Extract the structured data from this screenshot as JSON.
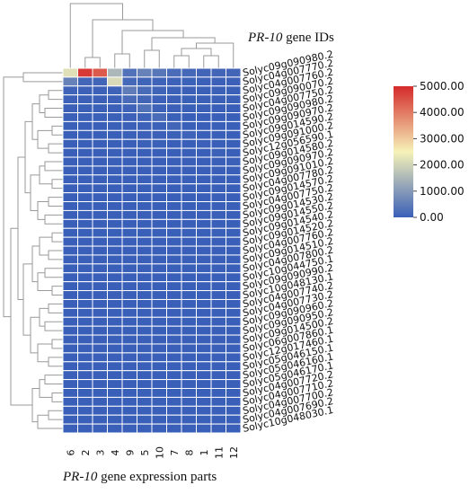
{
  "figure": {
    "top_title_italic": "PR-10",
    "top_title_rest": " gene IDs",
    "bottom_title_italic": "PR-10",
    "bottom_title_rest": " gene expression parts"
  },
  "colors": {
    "low": "#3a5fb8",
    "mid": "#f6f2b8",
    "high": "#d42a2a",
    "grid": "#ffffff",
    "dendrogram": "#9a9a9a",
    "text": "#111111"
  },
  "chart_data": {
    "type": "heatmap",
    "columns": [
      "6",
      "2",
      "3",
      "4",
      "9",
      "5",
      "10",
      "7",
      "8",
      "1",
      "11",
      "12"
    ],
    "rows": [
      "Solyc09g090980.2",
      "Solyc04g007770.2",
      "Solyc04g007760.2",
      "Solyc09g090070.2",
      "Solyc04g007750.2",
      "Solyc09g090980.2",
      "Solyc09g090970.2",
      "Solyc09g014590.2",
      "Solyc09g091000.2",
      "Solyc12g056590.1",
      "Solyc09g014580.2",
      "Solyc09g090970.2",
      "Solyc09g091010.2",
      "Solyc04g007780.2",
      "Solyc09g014570.2",
      "Solyc04g007750.2",
      "Solyc09g014530.2",
      "Solyc09g014550.2",
      "Solyc09g014540.2",
      "Solyc09g014520.2",
      "Solyc04g007760.2",
      "Solyc09g014510.2",
      "Solyc04g007800.2",
      "Solyc10g044750.1",
      "Solyc09g090990.2",
      "Solyc10g048130.1",
      "Solyc04g007740.2",
      "Solyc04g007730.2",
      "Solyc09g090960.2",
      "Solyc09g090950.2",
      "Solyc09g014500.2",
      "Solyc06g007860.1",
      "Solyc12g017460.1",
      "Solyc05g046150.1",
      "Solyc05g046160.1",
      "Solyc05g046170.1",
      "Solyc04g007720.2",
      "Solyc04g007710.2",
      "Solyc04g007700.2",
      "Solyc04g007690.2",
      "Solyc10g048030.1"
    ],
    "values": [
      [
        2200,
        4800,
        4400,
        1500,
        300,
        600,
        400,
        200,
        150,
        100,
        100,
        100
      ],
      [
        600,
        100,
        100,
        2100,
        150,
        80,
        60,
        40,
        30,
        20,
        20,
        20
      ],
      [
        60,
        40,
        40,
        60,
        500,
        200,
        80,
        30,
        20,
        10,
        10,
        10
      ],
      [
        40,
        20,
        20,
        40,
        200,
        100,
        40,
        20,
        10,
        10,
        10,
        10
      ],
      [
        20,
        10,
        10,
        20,
        60,
        300,
        50,
        20,
        10,
        10,
        5,
        5
      ],
      [
        10,
        10,
        10,
        10,
        40,
        60,
        200,
        10,
        5,
        5,
        5,
        5
      ],
      [
        10,
        5,
        5,
        10,
        20,
        40,
        30,
        100,
        5,
        5,
        5,
        5
      ],
      [
        5,
        5,
        5,
        5,
        10,
        20,
        20,
        10,
        60,
        5,
        5,
        5
      ],
      [
        5,
        5,
        5,
        5,
        5,
        10,
        10,
        5,
        5,
        40,
        5,
        5
      ],
      [
        5,
        5,
        5,
        5,
        5,
        5,
        5,
        5,
        5,
        5,
        30,
        5
      ],
      [
        5,
        5,
        5,
        5,
        5,
        5,
        5,
        5,
        5,
        5,
        5,
        20
      ],
      [
        5,
        5,
        5,
        5,
        5,
        5,
        5,
        5,
        5,
        5,
        5,
        5
      ],
      [
        5,
        5,
        5,
        5,
        5,
        5,
        5,
        5,
        5,
        5,
        5,
        5
      ],
      [
        5,
        5,
        5,
        5,
        5,
        5,
        5,
        5,
        5,
        5,
        5,
        5
      ],
      [
        5,
        5,
        5,
        5,
        5,
        5,
        5,
        5,
        5,
        5,
        5,
        5
      ],
      [
        5,
        5,
        5,
        5,
        5,
        5,
        5,
        5,
        5,
        5,
        5,
        5
      ],
      [
        5,
        5,
        5,
        5,
        5,
        5,
        5,
        5,
        5,
        5,
        5,
        5
      ],
      [
        5,
        5,
        5,
        5,
        5,
        5,
        5,
        5,
        5,
        5,
        5,
        5
      ],
      [
        5,
        5,
        5,
        5,
        5,
        5,
        5,
        5,
        5,
        5,
        5,
        5
      ],
      [
        5,
        5,
        5,
        5,
        5,
        5,
        5,
        5,
        5,
        5,
        5,
        5
      ],
      [
        5,
        5,
        5,
        5,
        5,
        5,
        5,
        5,
        5,
        5,
        5,
        5
      ],
      [
        5,
        5,
        5,
        5,
        5,
        5,
        5,
        5,
        5,
        5,
        5,
        5
      ],
      [
        5,
        5,
        5,
        5,
        5,
        5,
        5,
        5,
        5,
        5,
        5,
        5
      ],
      [
        5,
        5,
        5,
        5,
        5,
        5,
        5,
        5,
        5,
        5,
        5,
        5
      ],
      [
        5,
        5,
        5,
        5,
        5,
        5,
        5,
        5,
        5,
        5,
        5,
        5
      ],
      [
        5,
        5,
        5,
        5,
        5,
        5,
        5,
        5,
        5,
        5,
        5,
        5
      ],
      [
        5,
        5,
        5,
        5,
        5,
        5,
        5,
        5,
        5,
        5,
        5,
        5
      ],
      [
        5,
        5,
        5,
        5,
        5,
        5,
        5,
        5,
        5,
        5,
        5,
        5
      ],
      [
        5,
        5,
        5,
        5,
        5,
        5,
        5,
        5,
        5,
        5,
        5,
        5
      ],
      [
        5,
        5,
        5,
        5,
        5,
        5,
        5,
        5,
        5,
        5,
        5,
        5
      ],
      [
        5,
        5,
        5,
        5,
        5,
        5,
        5,
        5,
        5,
        5,
        5,
        5
      ],
      [
        5,
        5,
        5,
        5,
        5,
        5,
        5,
        5,
        5,
        5,
        5,
        5
      ],
      [
        5,
        5,
        5,
        5,
        5,
        5,
        5,
        5,
        5,
        5,
        5,
        5
      ],
      [
        5,
        5,
        5,
        5,
        5,
        5,
        5,
        5,
        5,
        5,
        5,
        5
      ],
      [
        5,
        5,
        5,
        5,
        5,
        5,
        5,
        5,
        5,
        5,
        5,
        5
      ],
      [
        5,
        5,
        5,
        5,
        5,
        5,
        5,
        5,
        5,
        5,
        5,
        5
      ],
      [
        5,
        5,
        5,
        5,
        5,
        5,
        5,
        5,
        5,
        5,
        5,
        5
      ],
      [
        5,
        5,
        5,
        5,
        5,
        5,
        5,
        5,
        5,
        5,
        5,
        5
      ],
      [
        5,
        5,
        5,
        5,
        5,
        5,
        5,
        5,
        5,
        5,
        5,
        5
      ],
      [
        5,
        5,
        5,
        5,
        5,
        5,
        5,
        5,
        5,
        5,
        5,
        5
      ],
      [
        5,
        5,
        5,
        5,
        5,
        5,
        5,
        5,
        5,
        5,
        5,
        5
      ]
    ],
    "colorscale": {
      "min": 0,
      "max": 5000,
      "ticks": [
        "5000.00",
        "4000.00",
        "3000.00",
        "2000.00",
        "1000.00",
        "0.00"
      ]
    },
    "legend_position": "top-right",
    "row_dendrogram": "left",
    "column_dendrogram": "top"
  }
}
